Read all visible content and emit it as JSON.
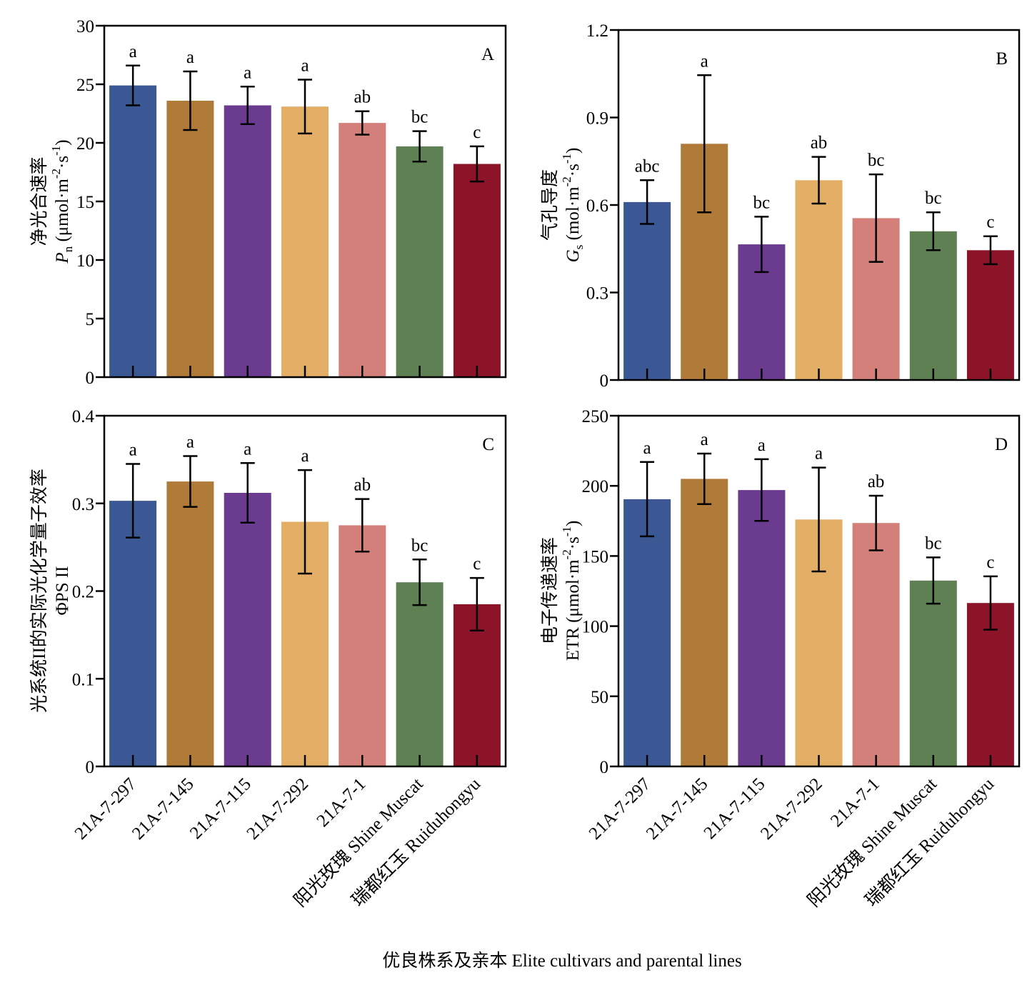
{
  "xlabel": "优良株系及亲本 Elite cultivars and parental lines",
  "categories": [
    "21A-7-297",
    "21A-7-145",
    "21A-7-115",
    "21A-7-292",
    "21A-7-1",
    "阳光玫瑰 Shine Muscat",
    "瑞都红玉 Ruiduhongyu"
  ],
  "colors": [
    "#3b5794",
    "#b07a38",
    "#6b3b8f",
    "#e3ae66",
    "#d4807a",
    "#5e8053",
    "#8c1428"
  ],
  "chart_data": [
    {
      "type": "bar",
      "panel": "A",
      "ylabel_cn": "净光合速率",
      "ylabel_sym": "P",
      "ylabel_sub": "n",
      "ylabel_unit": " (μmol·m",
      "ylabel_unit_tail": "·s",
      "ylabel_sup1": "-2",
      "ylabel_sup2": "-1",
      "ylabel_close": ")",
      "ylim": [
        0,
        30
      ],
      "yticks": [
        0,
        5,
        10,
        15,
        20,
        25,
        30
      ],
      "ytick_labels": [
        "0",
        "5",
        "10",
        "15",
        "20",
        "25",
        "30"
      ],
      "values": [
        24.9,
        23.6,
        23.2,
        23.1,
        21.7,
        19.7,
        18.2
      ],
      "errors": [
        1.7,
        2.5,
        1.6,
        2.3,
        1.0,
        1.3,
        1.5
      ],
      "letters": [
        "a",
        "a",
        "a",
        "a",
        "ab",
        "bc",
        "c"
      ]
    },
    {
      "type": "bar",
      "panel": "B",
      "ylabel_cn": "气孔导度",
      "ylabel_sym": "G",
      "ylabel_sub": "s",
      "ylabel_unit": " (mol·m",
      "ylabel_unit_tail": "·s",
      "ylabel_sup1": "-2",
      "ylabel_sup2": "-1",
      "ylabel_close": ")",
      "ylim": [
        0,
        1.2
      ],
      "yticks": [
        0,
        0.3,
        0.6,
        0.9,
        1.2
      ],
      "ytick_labels": [
        "0",
        "0.3",
        "0.6",
        "0.9",
        "1.2"
      ],
      "values": [
        0.61,
        0.81,
        0.465,
        0.685,
        0.555,
        0.51,
        0.445
      ],
      "errors": [
        0.075,
        0.235,
        0.095,
        0.08,
        0.15,
        0.065,
        0.048
      ],
      "letters": [
        "abc",
        "a",
        "bc",
        "ab",
        "bc",
        "bc",
        "c"
      ]
    },
    {
      "type": "bar",
      "panel": "C",
      "ylabel_cn": "光系统II的实际光化学量子效率",
      "ylabel_sym": "ΦPS II",
      "ylim": [
        0,
        0.4
      ],
      "yticks": [
        0,
        0.1,
        0.2,
        0.3,
        0.4
      ],
      "ytick_labels": [
        "0",
        "0.1",
        "0.2",
        "0.3",
        "0.4"
      ],
      "values": [
        0.303,
        0.325,
        0.312,
        0.279,
        0.275,
        0.21,
        0.185
      ],
      "errors": [
        0.042,
        0.029,
        0.034,
        0.059,
        0.03,
        0.026,
        0.03
      ],
      "letters": [
        "a",
        "a",
        "a",
        "a",
        "ab",
        "bc",
        "c"
      ]
    },
    {
      "type": "bar",
      "panel": "D",
      "ylabel_cn": "电子传递速率",
      "ylabel_sym": "ETR",
      "ylabel_unit": " (μmol·m",
      "ylabel_unit_tail": "·s",
      "ylabel_sup1": "-2",
      "ylabel_sup2": "-1",
      "ylabel_close": ")",
      "ylim": [
        0,
        250
      ],
      "yticks": [
        0,
        50,
        100,
        150,
        200,
        250
      ],
      "ytick_labels": [
        "0",
        "50",
        "100",
        "150",
        "200",
        "250"
      ],
      "values": [
        190.5,
        205,
        197,
        176,
        173.5,
        132.5,
        116.5
      ],
      "errors": [
        26.5,
        18,
        22,
        37,
        19.5,
        16.5,
        19
      ],
      "letters": [
        "a",
        "a",
        "a",
        "a",
        "ab",
        "bc",
        "c"
      ]
    }
  ]
}
